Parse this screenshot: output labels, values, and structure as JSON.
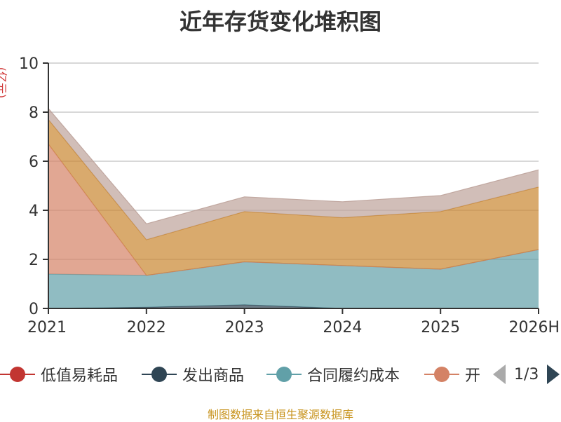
{
  "title": "近年存货变化堆积图",
  "unit_label": "(亿元)",
  "source": "制图数据来自恒生聚源数据库",
  "legend": {
    "items": [
      {
        "label": "低值易耗品",
        "color": "#c23531"
      },
      {
        "label": "发出商品",
        "color": "#2f4554"
      },
      {
        "label": "合同履约成本",
        "color": "#61a0a8"
      },
      {
        "label": "开",
        "color": "#d48265"
      }
    ],
    "page_text": "1/3"
  },
  "chart_data": {
    "type": "area",
    "stacked": true,
    "title": "近年存货变化堆积图",
    "ylabel": "(亿元)",
    "categories": [
      "2021",
      "2022",
      "2023",
      "2024",
      "2025",
      "2026H"
    ],
    "ylim": [
      0,
      10
    ],
    "yticks": [
      0,
      2,
      4,
      6,
      8,
      10
    ],
    "grid": true,
    "series": [
      {
        "name": "低值易耗品",
        "color": "#c23531",
        "values": [
          0,
          0,
          0,
          0,
          0,
          0
        ]
      },
      {
        "name": "发出商品",
        "color": "#2f4554",
        "values": [
          0,
          0.05,
          0.15,
          0,
          0,
          0
        ]
      },
      {
        "name": "合同履约成本",
        "color": "#61a0a8",
        "values": [
          1.4,
          1.3,
          1.75,
          1.75,
          1.6,
          2.4
        ]
      },
      {
        "name": "开",
        "color": "#d48265",
        "values": [
          5.3,
          0,
          0,
          0,
          0,
          0
        ]
      },
      {
        "color": "#c9862f",
        "values": [
          1.0,
          1.45,
          2.05,
          1.95,
          2.35,
          2.55
        ]
      },
      {
        "color": "#bda29a",
        "values": [
          0.45,
          0.65,
          0.6,
          0.65,
          0.65,
          0.7
        ]
      }
    ]
  }
}
